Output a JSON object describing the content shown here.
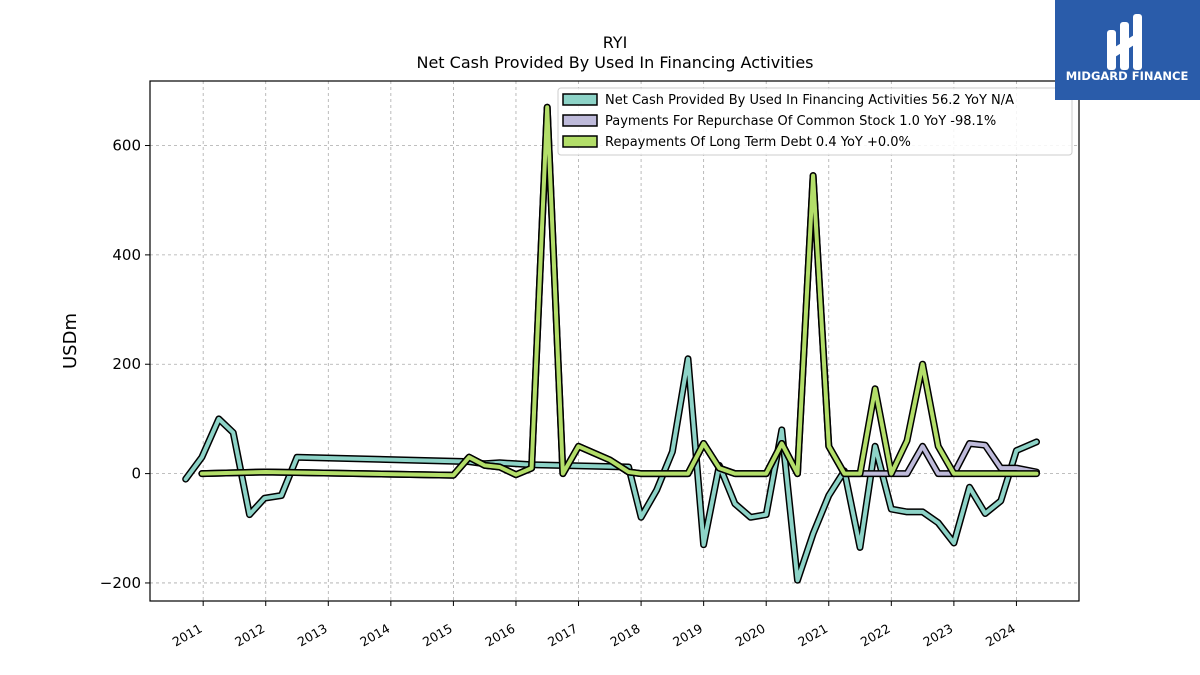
{
  "chart_data": {
    "type": "line",
    "title": "RYI",
    "subtitle": "Net Cash Provided By Used In Financing Activities",
    "xlabel": "",
    "ylabel": "USDm",
    "xlim": [
      2010.15,
      2025.0
    ],
    "ylim": [
      -233,
      718
    ],
    "yticks": [
      -200,
      0,
      200,
      400,
      600
    ],
    "ytick_labels": [
      "−200",
      "0",
      "200",
      "400",
      "600"
    ],
    "xticks": [
      2011,
      2012,
      2013,
      2014,
      2015,
      2016,
      2017,
      2018,
      2019,
      2020,
      2021,
      2022,
      2023,
      2024
    ],
    "xtick_labels": [
      "2011",
      "2012",
      "2013",
      "2014",
      "2015",
      "2016",
      "2017",
      "2018",
      "2019",
      "2020",
      "2021",
      "2022",
      "2023",
      "2024"
    ],
    "grid": true,
    "legend_position": "top-right",
    "series": [
      {
        "name": "Net Cash Provided By Used In Financing Activities",
        "legend_label": "Net Cash Provided By Used In Financing Activities  56.2 YoY N/A",
        "color": "#8dd3c7",
        "x": [
          2010.72,
          2010.98,
          2011.25,
          2011.48,
          2011.74,
          2011.98,
          2012.25,
          2012.5,
          2015.25,
          2015.5,
          2015.74,
          2016.0,
          2016.25,
          2017.8,
          2018.0,
          2018.25,
          2018.5,
          2018.75,
          2019.0,
          2019.25,
          2019.5,
          2019.75,
          2020.0,
          2020.25,
          2020.5,
          2020.75,
          2021.0,
          2021.25,
          2021.5,
          2021.74,
          2022.0,
          2022.25,
          2022.5,
          2022.75,
          2023.0,
          2023.25,
          2023.5,
          2023.75,
          2024.0,
          2024.32
        ],
        "values": [
          -10,
          30,
          100,
          75,
          -75,
          -45,
          -40,
          30,
          22,
          18,
          20,
          18,
          16,
          12,
          -80,
          -30,
          40,
          210,
          -130,
          15,
          -55,
          -80,
          -75,
          80,
          -195,
          -110,
          -40,
          5,
          -135,
          50,
          -65,
          -70,
          -70,
          -90,
          -127,
          -25,
          -73,
          -50,
          42,
          58
        ]
      },
      {
        "name": "Payments For Repurchase Of Common Stock",
        "legend_label": "Payments For Repurchase Of Common Stock  1.0 YoY -98.1%",
        "color": "#bebada",
        "x": [
          2010.98,
          2012.0,
          2015.0,
          2015.25,
          2015.5,
          2015.74,
          2016.0,
          2016.25,
          2016.5,
          2016.75,
          2017.0,
          2017.5,
          2017.8,
          2018.0,
          2018.25,
          2018.5,
          2018.75,
          2019.0,
          2019.25,
          2019.5,
          2019.75,
          2020.0,
          2020.25,
          2020.5,
          2020.75,
          2021.0,
          2021.25,
          2021.5,
          2021.74,
          2022.0,
          2022.25,
          2022.5,
          2022.75,
          2023.0,
          2023.25,
          2023.5,
          2023.75,
          2024.0,
          2024.32
        ],
        "values": [
          0,
          3,
          -3,
          30,
          15,
          12,
          -2,
          10,
          670,
          0,
          50,
          25,
          3,
          0,
          0,
          0,
          0,
          55,
          10,
          0,
          0,
          0,
          55,
          0,
          545,
          50,
          0,
          0,
          0,
          0,
          0,
          50,
          0,
          0,
          55,
          52,
          10,
          10,
          3
        ]
      },
      {
        "name": "Repayments Of Long Term Debt",
        "legend_label": "Repayments Of Long Term Debt  0.4 YoY +0.0%",
        "color": "#b3de69",
        "x": [
          2010.98,
          2012.0,
          2015.0,
          2015.25,
          2015.5,
          2015.74,
          2016.0,
          2016.25,
          2016.5,
          2016.75,
          2017.0,
          2017.5,
          2017.8,
          2018.0,
          2018.25,
          2018.5,
          2018.75,
          2019.0,
          2019.25,
          2019.5,
          2019.75,
          2020.0,
          2020.25,
          2020.5,
          2020.75,
          2021.0,
          2021.25,
          2021.5,
          2021.74,
          2022.0,
          2022.25,
          2022.5,
          2022.75,
          2023.0,
          2023.25,
          2023.5,
          2023.75,
          2024.0,
          2024.32
        ],
        "values": [
          0,
          3,
          -3,
          30,
          15,
          12,
          -2,
          10,
          670,
          0,
          50,
          25,
          3,
          0,
          0,
          0,
          0,
          55,
          10,
          0,
          0,
          0,
          55,
          0,
          545,
          50,
          0,
          0,
          155,
          0,
          60,
          200,
          50,
          0,
          0,
          0,
          0,
          0,
          0
        ]
      }
    ]
  },
  "logo": {
    "text": "MIDGARD FINANCE",
    "background": "#2a5caa"
  }
}
